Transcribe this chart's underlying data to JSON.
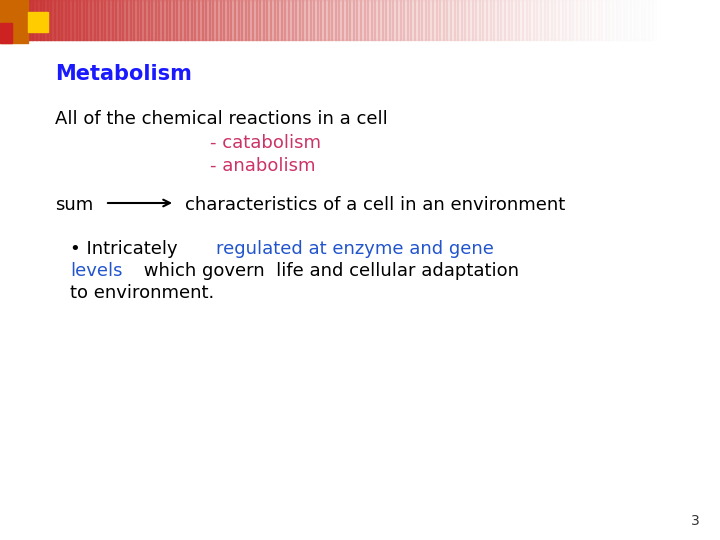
{
  "title": "Metabolism",
  "title_color": "#1a1aff",
  "title_fontsize": 15,
  "bg_color": "#ffffff",
  "slide_number": "3",
  "line1": "All of the chemical reactions in a cell",
  "line1_color": "#000000",
  "line1_fontsize": 13,
  "line2": "- catabolism",
  "line2_color": "#cc3366",
  "line2_fontsize": 13,
  "line3": "- anabolism",
  "line3_color": "#cc3366",
  "line3_fontsize": 13,
  "sum_text": "sum",
  "sum_color": "#000000",
  "sum_fontsize": 13,
  "arrow_color": "#000000",
  "characteristics_text": "characteristics of a cell in an environment",
  "characteristics_color": "#000000",
  "characteristics_fontsize": 13,
  "bullet_black1": "• Intricately ",
  "bullet_blue1": "regulated at enzyme and gene",
  "bullet_blue_color": "#2255cc",
  "bullet_black_color": "#000000",
  "bullet_fontsize": 13,
  "bullet_line2_blue": "levels",
  "bullet_line2_black": " which govern  life and cellular adaptation",
  "bullet_line3": "to environment.",
  "corner_orange": "#cc6600",
  "corner_yellow": "#ffcc00",
  "corner_red": "#cc2222"
}
